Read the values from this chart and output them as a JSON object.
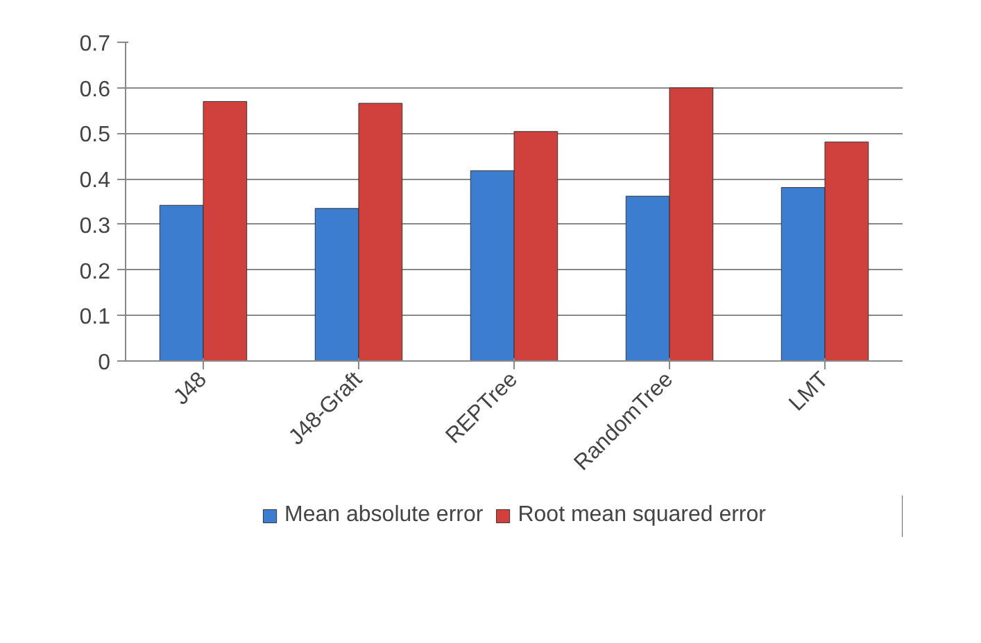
{
  "chart_data": {
    "type": "bar",
    "categories": [
      "J48",
      "J48-Graft",
      "REPTree",
      "RandomTree",
      "LMT"
    ],
    "series": [
      {
        "name": "Mean absolute error",
        "color": "#3c7dd0",
        "values": [
          0.342,
          0.335,
          0.418,
          0.362,
          0.381
        ]
      },
      {
        "name": "Root mean squared error",
        "color": "#d0403c",
        "values": [
          0.57,
          0.566,
          0.504,
          0.6,
          0.481
        ]
      }
    ],
    "ylim": [
      0,
      0.7
    ],
    "yticks": [
      0,
      0.1,
      0.2,
      0.3,
      0.4,
      0.5,
      0.6,
      0.7
    ],
    "grid": "y",
    "legend": "bottom"
  }
}
